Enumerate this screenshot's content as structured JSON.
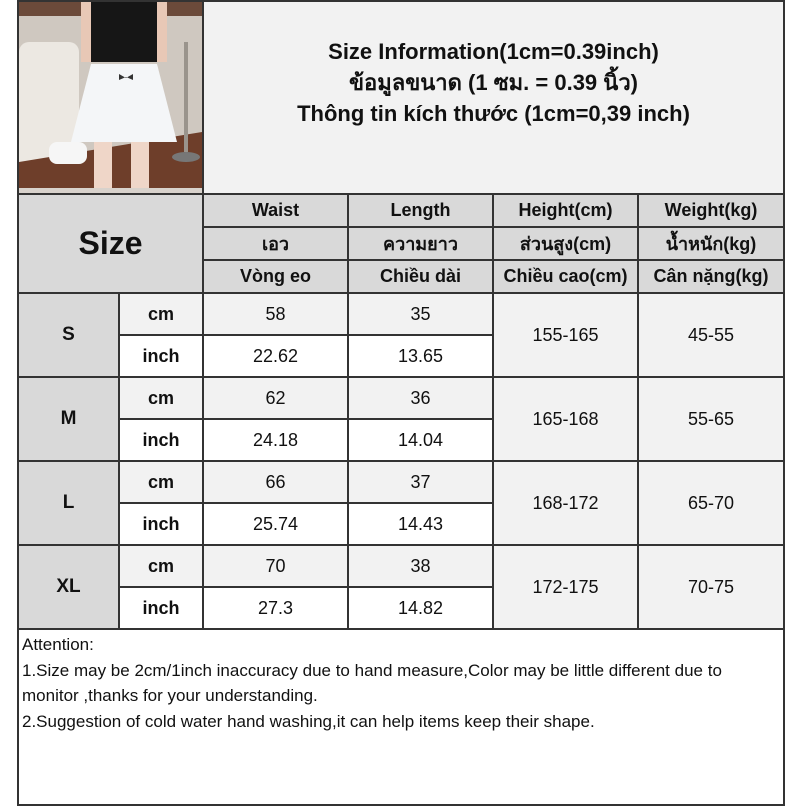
{
  "title": {
    "line1": "Size Information(1cm=0.39inch)",
    "line2": "ข้อมูลขนาด (1 ซม. = 0.39 นิ้ว)",
    "line3": "Thông tin kích thước (1cm=0,39 inch)"
  },
  "size_label": "Size",
  "columns": [
    {
      "en": "Waist",
      "th": "เอว",
      "vi": "Vòng eo"
    },
    {
      "en": "Length",
      "th": "ความยาว",
      "vi": "Chiều dài"
    },
    {
      "en": "Height(cm)",
      "th": "ส่วนสูง(cm)",
      "vi": "Chiều cao(cm)"
    },
    {
      "en": "Weight(kg)",
      "th": "น้ำหนัก(kg)",
      "vi": "Cân nặng(kg)"
    }
  ],
  "units": {
    "cm": "cm",
    "inch": "inch"
  },
  "sizes": [
    {
      "size": "S",
      "cm": {
        "waist": "58",
        "length": "35"
      },
      "inch": {
        "waist": "22.62",
        "length": "13.65"
      },
      "height": "155-165",
      "weight": "45-55"
    },
    {
      "size": "M",
      "cm": {
        "waist": "62",
        "length": "36"
      },
      "inch": {
        "waist": "24.18",
        "length": "14.04"
      },
      "height": "165-168",
      "weight": "55-65"
    },
    {
      "size": "L",
      "cm": {
        "waist": "66",
        "length": "37"
      },
      "inch": {
        "waist": "25.74",
        "length": "14.43"
      },
      "height": "168-172",
      "weight": "65-70"
    },
    {
      "size": "XL",
      "cm": {
        "waist": "70",
        "length": "38"
      },
      "inch": {
        "waist": "27.3",
        "length": "14.82"
      },
      "height": "172-175",
      "weight": "70-75"
    }
  ],
  "notes": {
    "heading": "Attention:",
    "items": [
      "1.Size may be 2cm/1inch inaccuracy due to hand measure,Color may be little different due to monitor ,thanks for your understanding.",
      "2.Suggestion of cold water hand washing,it can help items keep their shape."
    ]
  },
  "colors": {
    "header_gray": "#d9d9d9",
    "light_gray": "#f2f2f2",
    "border": "#333333"
  }
}
